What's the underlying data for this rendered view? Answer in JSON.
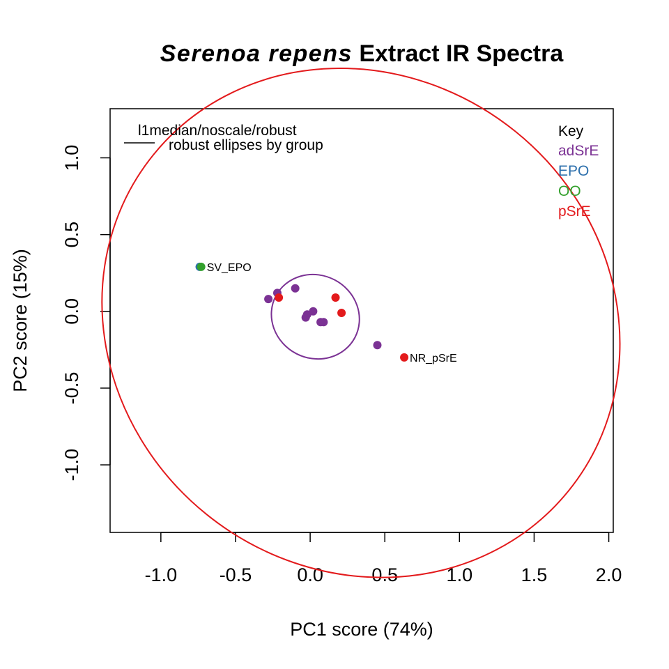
{
  "chart_data": {
    "type": "scatter",
    "title_italic": "Serenoa repens",
    "title_rest": " Extract IR Spectra",
    "xlabel": "PC1 score (74%)",
    "ylabel": "PC2 score (15%)",
    "xlim": [
      -1.34,
      2.03
    ],
    "ylim": [
      -1.44,
      1.32
    ],
    "x_ticks": [
      -1.0,
      -0.5,
      0.0,
      0.5,
      1.0,
      1.5,
      2.0
    ],
    "x_tick_labels": [
      "-1.0",
      "-0.5",
      "0.0",
      "0.5",
      "1.0",
      "1.5",
      "2.0"
    ],
    "y_ticks": [
      -1.0,
      -0.5,
      0.0,
      0.5,
      1.0
    ],
    "y_tick_labels": [
      "-1.0",
      "-0.5",
      "0.0",
      "0.5",
      "1.0"
    ],
    "legend_left": {
      "line1": "l1median/noscale/robust",
      "line2": "robust ellipses by group"
    },
    "key": {
      "title": "Key",
      "entries": [
        {
          "name": "adSrE",
          "color": "#7B3294"
        },
        {
          "name": "EPO",
          "color": "#2C6FAC"
        },
        {
          "name": "OO",
          "color": "#33A02C"
        },
        {
          "name": "pSrE",
          "color": "#E31A1C"
        }
      ]
    },
    "series": [
      {
        "name": "adSrE",
        "color": "#7B3294",
        "points": [
          [
            -0.28,
            0.08
          ],
          [
            -0.22,
            0.12
          ],
          [
            -0.1,
            0.15
          ],
          [
            -0.02,
            -0.02
          ],
          [
            -0.03,
            -0.04
          ],
          [
            0.02,
            0.0
          ],
          [
            0.07,
            -0.07
          ],
          [
            0.09,
            -0.07
          ],
          [
            0.45,
            -0.22
          ]
        ]
      },
      {
        "name": "EPO",
        "color": "#2C6FAC",
        "points": [
          [
            -0.74,
            0.29
          ]
        ]
      },
      {
        "name": "OO",
        "color": "#33A02C",
        "points": [
          [
            -0.73,
            0.29
          ]
        ]
      },
      {
        "name": "pSrE",
        "color": "#E31A1C",
        "points": [
          [
            -0.21,
            0.09
          ],
          [
            0.17,
            0.09
          ],
          [
            0.21,
            -0.01
          ],
          [
            0.63,
            -0.3
          ]
        ]
      }
    ],
    "point_labels": [
      {
        "text": "SV_EPO",
        "x": -0.73,
        "y": 0.29
      },
      {
        "text": "NR_pSrE",
        "x": 0.63,
        "y": -0.3
      }
    ],
    "ellipses": [
      {
        "group": "pSrE",
        "color": "#E31A1C",
        "boundary": [
          [
            -1.05,
            1.02
          ],
          [
            1.73,
            -1.17
          ],
          [
            -0.9,
            0.98
          ],
          [
            1.58,
            -1.13
          ]
        ]
      },
      {
        "group": "adSrE",
        "color": "#7B3294",
        "boundary": [
          [
            -0.23,
            0.1
          ],
          [
            0.3,
            -0.17
          ],
          [
            -0.2,
            0.11
          ],
          [
            0.27,
            -0.18
          ]
        ]
      }
    ],
    "grid": false,
    "key_placement": "top-right",
    "legend_placement": "top-left"
  }
}
